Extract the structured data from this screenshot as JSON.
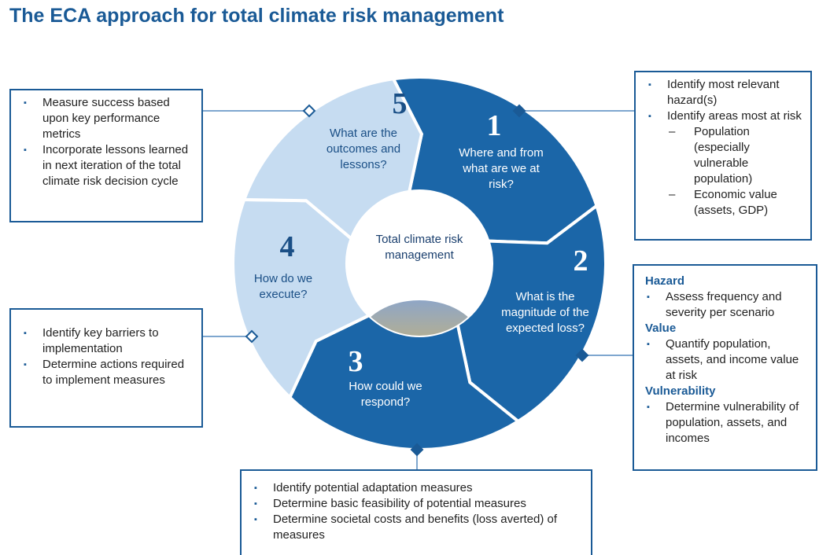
{
  "title": "The ECA approach for total climate risk management",
  "center": "Total climate risk management",
  "segments": [
    {
      "number": "1",
      "question": "Where and from what are we at risk?"
    },
    {
      "number": "2",
      "question": "What is the magnitude of the expected loss?"
    },
    {
      "number": "3",
      "question": "How could we respond?"
    },
    {
      "number": "4",
      "question": "How do we execute?"
    },
    {
      "number": "5",
      "question": "What are the outcomes and lessons?"
    }
  ],
  "boxes": {
    "step1": {
      "items": [
        {
          "text": "Identify most relevant hazard(s)"
        },
        {
          "text": "Identify areas most at risk",
          "subitems": [
            "Population (especially vulnerable population)",
            "Economic value (assets, GDP)"
          ]
        }
      ]
    },
    "step2": {
      "groups": [
        {
          "heading": "Hazard",
          "items": [
            "Assess frequency and severity per scenario"
          ]
        },
        {
          "heading": "Value",
          "items": [
            "Quantify population, assets, and income value at risk"
          ]
        },
        {
          "heading": "Vulnerability",
          "items": [
            "Determine vulnerability of population, assets, and incomes"
          ]
        }
      ]
    },
    "step3": {
      "items": [
        "Identify potential adaptation measures",
        "Determine basic feasibility of potential measures",
        "Determine societal costs and benefits (loss averted) of measures"
      ]
    },
    "step4": {
      "items": [
        "Identify key barriers to implementation",
        "Determine actions required to implement measures"
      ]
    },
    "step5": {
      "items": [
        "Measure success based upon key performance metrics",
        "Incorporate lessons learned in next iteration of the total climate risk decision cycle"
      ]
    }
  }
}
